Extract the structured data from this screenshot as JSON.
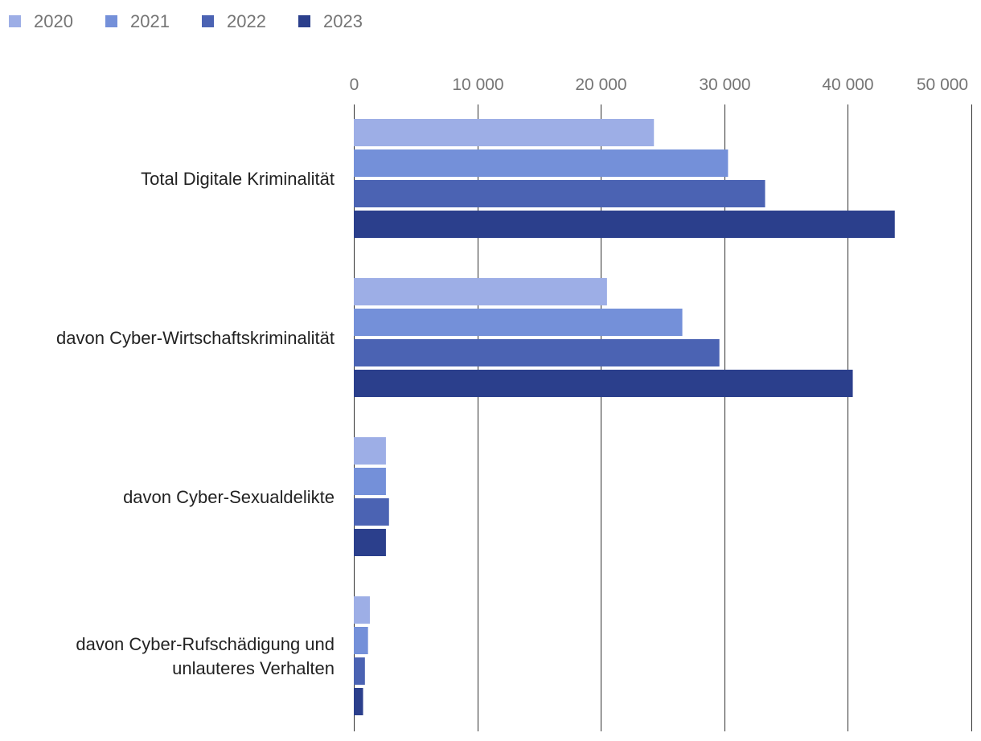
{
  "chart_data": {
    "type": "bar",
    "orientation": "horizontal",
    "title": "",
    "xlabel": "",
    "ylabel": "",
    "xlim": [
      0,
      50000
    ],
    "x_ticks": [
      {
        "value": 0,
        "label": "0"
      },
      {
        "value": 10000,
        "label": "10 000"
      },
      {
        "value": 20000,
        "label": "20 000"
      },
      {
        "value": 30000,
        "label": "30 000"
      },
      {
        "value": 40000,
        "label": "40 000"
      },
      {
        "value": 50000,
        "label": "50 000"
      }
    ],
    "grid": true,
    "legend_position": "top-left",
    "categories": [
      [
        "Total Digitale Kriminalität"
      ],
      [
        "davon Cyber-Wirtschaftskriminalität"
      ],
      [
        "davon Cyber-Sexualdelikte"
      ],
      [
        "davon Cyber-Rufschädigung und",
        "unlauteres Verhalten"
      ]
    ],
    "series": [
      {
        "name": "2020",
        "color": "#9daee6",
        "values": [
          24300,
          20500,
          2600,
          1300
        ]
      },
      {
        "name": "2021",
        "color": "#7490d9",
        "values": [
          30300,
          26600,
          2600,
          1150
        ]
      },
      {
        "name": "2022",
        "color": "#4b63b3",
        "values": [
          33300,
          29600,
          2850,
          900
        ]
      },
      {
        "name": "2023",
        "color": "#2b3f8c",
        "values": [
          43800,
          40400,
          2600,
          750
        ]
      }
    ]
  }
}
